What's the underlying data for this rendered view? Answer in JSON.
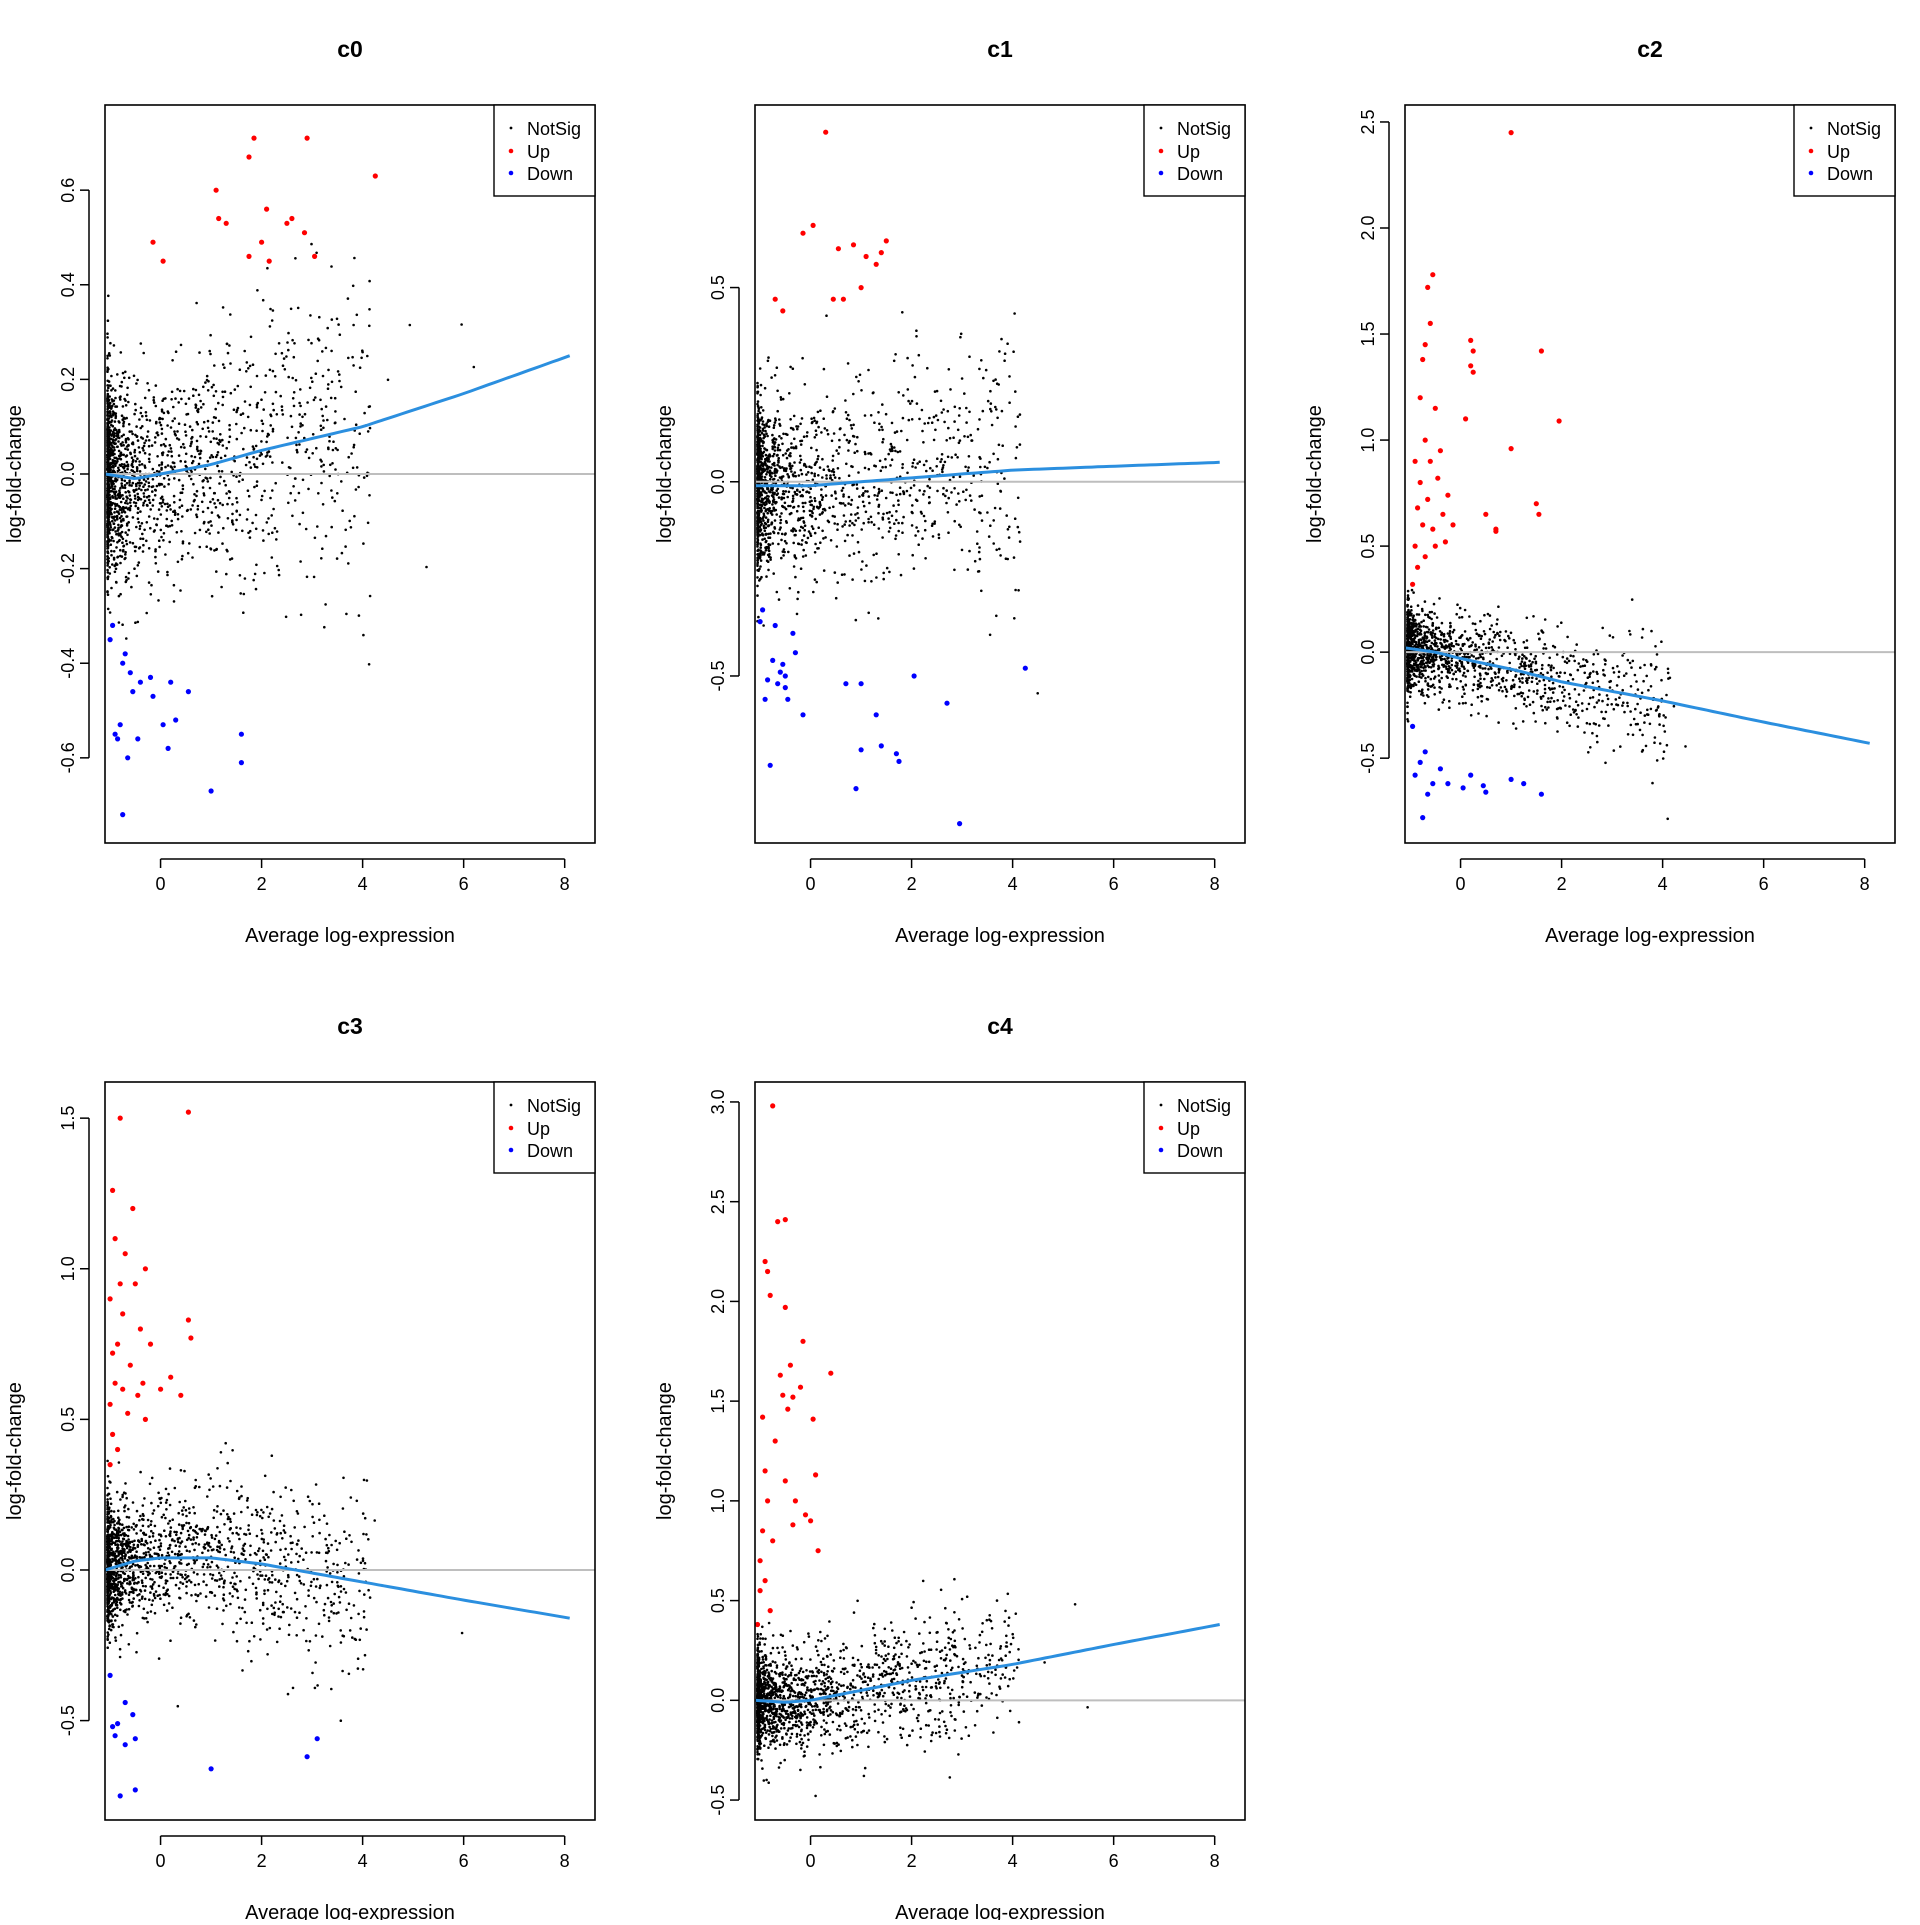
{
  "figure": {
    "xlabel": "Average log-expression",
    "ylabel": "log-fold-change"
  },
  "legend_entries": [
    "NotSig",
    "Up",
    "Down"
  ],
  "colors": {
    "notsig": "#000000",
    "up": "#ff0000",
    "down": "#0000ff",
    "trend": "#2b8fdf",
    "zero_line": "#bebebe"
  },
  "chart_data": [
    {
      "type": "scatter",
      "title": "c0",
      "xlabel": "Average log-expression",
      "ylabel": "log-fold-change",
      "xlim": [
        -1.1,
        8.6
      ],
      "ylim": [
        -0.78,
        0.78
      ],
      "xticks": [
        0,
        2,
        4,
        6,
        8
      ],
      "yticks": [
        -0.6,
        -0.4,
        -0.2,
        0.0,
        0.2,
        0.4,
        0.6
      ],
      "ytick_labels": [
        "-0.6",
        "-0.4",
        "-0.2",
        "0.0",
        "0.2",
        "0.4",
        "0.6"
      ],
      "legend": {
        "position": "top-right",
        "entries": [
          "NotSig",
          "Up",
          "Down"
        ]
      },
      "trend": {
        "x": [
          -1.1,
          -0.5,
          0,
          1,
          2,
          4,
          6,
          8.1
        ],
        "y": [
          0.0,
          -0.01,
          0.0,
          0.02,
          0.05,
          0.1,
          0.17,
          0.25
        ]
      },
      "cloud": {
        "n": 1800,
        "spread": 0.14
      },
      "up": [
        [
          -0.15,
          0.49
        ],
        [
          0.05,
          0.45
        ],
        [
          1.1,
          0.6
        ],
        [
          1.15,
          0.54
        ],
        [
          1.3,
          0.53
        ],
        [
          1.75,
          0.46
        ],
        [
          1.75,
          0.67
        ],
        [
          1.85,
          0.71
        ],
        [
          2.0,
          0.49
        ],
        [
          2.1,
          0.56
        ],
        [
          2.15,
          0.45
        ],
        [
          2.5,
          0.53
        ],
        [
          2.6,
          0.54
        ],
        [
          2.85,
          0.51
        ],
        [
          2.9,
          0.71
        ],
        [
          3.05,
          0.46
        ],
        [
          4.25,
          0.63
        ]
      ],
      "down": [
        [
          -1.0,
          -0.35
        ],
        [
          -0.95,
          -0.32
        ],
        [
          -0.9,
          -0.55
        ],
        [
          -0.85,
          -0.56
        ],
        [
          -0.8,
          -0.53
        ],
        [
          -0.75,
          -0.72
        ],
        [
          -0.75,
          -0.4
        ],
        [
          -0.7,
          -0.38
        ],
        [
          -0.65,
          -0.6
        ],
        [
          -0.6,
          -0.42
        ],
        [
          -0.55,
          -0.46
        ],
        [
          -0.45,
          -0.56
        ],
        [
          -0.4,
          -0.44
        ],
        [
          -0.2,
          -0.43
        ],
        [
          -0.15,
          -0.47
        ],
        [
          0.05,
          -0.53
        ],
        [
          0.15,
          -0.58
        ],
        [
          0.2,
          -0.44
        ],
        [
          0.3,
          -0.52
        ],
        [
          0.55,
          -0.46
        ],
        [
          1.0,
          -0.67
        ],
        [
          1.6,
          -0.55
        ],
        [
          1.6,
          -0.61
        ]
      ]
    },
    {
      "type": "scatter",
      "title": "c1",
      "xlabel": "Average log-expression",
      "ylabel": "log-fold-change",
      "xlim": [
        -1.1,
        8.6
      ],
      "ylim": [
        -0.93,
        0.97
      ],
      "xticks": [
        0,
        2,
        4,
        6,
        8
      ],
      "yticks": [
        -0.5,
        0.0,
        0.5
      ],
      "ytick_labels": [
        "-0.5",
        "0.0",
        "0.5"
      ],
      "legend": {
        "position": "top-right",
        "entries": [
          "NotSig",
          "Up",
          "Down"
        ]
      },
      "trend": {
        "x": [
          -1.1,
          -0.5,
          0,
          1,
          2,
          4,
          6,
          8.1
        ],
        "y": [
          -0.01,
          -0.01,
          -0.01,
          0.0,
          0.01,
          0.03,
          0.04,
          0.05
        ]
      },
      "cloud": {
        "n": 1600,
        "spread": 0.15
      },
      "up": [
        [
          -0.7,
          0.47
        ],
        [
          -0.55,
          0.44
        ],
        [
          -0.15,
          0.64
        ],
        [
          0.05,
          0.66
        ],
        [
          0.3,
          0.9
        ],
        [
          0.45,
          0.47
        ],
        [
          0.55,
          0.6
        ],
        [
          0.65,
          0.47
        ],
        [
          0.85,
          0.61
        ],
        [
          1.0,
          0.5
        ],
        [
          1.1,
          0.58
        ],
        [
          1.3,
          0.56
        ],
        [
          1.4,
          0.59
        ],
        [
          1.5,
          0.62
        ]
      ],
      "down": [
        [
          -1.0,
          -0.36
        ],
        [
          -0.95,
          -0.33
        ],
        [
          -0.9,
          -0.56
        ],
        [
          -0.85,
          -0.51
        ],
        [
          -0.8,
          -0.73
        ],
        [
          -0.75,
          -0.46
        ],
        [
          -0.7,
          -0.37
        ],
        [
          -0.65,
          -0.52
        ],
        [
          -0.6,
          -0.49
        ],
        [
          -0.55,
          -0.47
        ],
        [
          -0.5,
          -0.5
        ],
        [
          -0.5,
          -0.53
        ],
        [
          -0.45,
          -0.56
        ],
        [
          -0.35,
          -0.39
        ],
        [
          -0.3,
          -0.44
        ],
        [
          -0.15,
          -0.6
        ],
        [
          0.7,
          -0.52
        ],
        [
          0.9,
          -0.79
        ],
        [
          1.0,
          -0.69
        ],
        [
          1.0,
          -0.52
        ],
        [
          1.3,
          -0.6
        ],
        [
          1.4,
          -0.68
        ],
        [
          1.7,
          -0.7
        ],
        [
          1.75,
          -0.72
        ],
        [
          2.05,
          -0.5
        ],
        [
          2.7,
          -0.57
        ],
        [
          2.95,
          -0.88
        ],
        [
          4.25,
          -0.48
        ]
      ]
    },
    {
      "type": "scatter",
      "title": "c2",
      "xlabel": "Average log-expression",
      "ylabel": "log-fold-change",
      "xlim": [
        -1.1,
        8.6
      ],
      "ylim": [
        -0.9,
        2.58
      ],
      "xticks": [
        0,
        2,
        4,
        6,
        8
      ],
      "yticks": [
        -0.5,
        0.0,
        0.5,
        1.0,
        1.5,
        2.0,
        2.5
      ],
      "ytick_labels": [
        "-0.5",
        "0.0",
        "0.5",
        "1.0",
        "1.5",
        "2.0",
        "2.5"
      ],
      "legend": {
        "position": "top-right",
        "entries": [
          "NotSig",
          "Up",
          "Down"
        ]
      },
      "trend": {
        "x": [
          -1.1,
          -0.5,
          0,
          1,
          2,
          4,
          6,
          8.1
        ],
        "y": [
          0.02,
          0.0,
          -0.03,
          -0.08,
          -0.14,
          -0.23,
          -0.33,
          -0.43
        ]
      },
      "cloud": {
        "n": 1500,
        "spread": 0.13
      },
      "up": [
        [
          -0.95,
          0.32
        ],
        [
          -0.9,
          0.5
        ],
        [
          -0.9,
          0.9
        ],
        [
          -0.85,
          0.68
        ],
        [
          -0.85,
          0.4
        ],
        [
          -0.8,
          1.2
        ],
        [
          -0.8,
          0.8
        ],
        [
          -0.75,
          1.38
        ],
        [
          -0.75,
          0.6
        ],
        [
          -0.7,
          1.45
        ],
        [
          -0.7,
          1.0
        ],
        [
          -0.7,
          0.45
        ],
        [
          -0.65,
          1.72
        ],
        [
          -0.65,
          0.72
        ],
        [
          -0.6,
          1.55
        ],
        [
          -0.6,
          0.9
        ],
        [
          -0.55,
          1.78
        ],
        [
          -0.55,
          0.58
        ],
        [
          -0.5,
          1.15
        ],
        [
          -0.5,
          0.5
        ],
        [
          -0.45,
          0.82
        ],
        [
          -0.4,
          0.95
        ],
        [
          -0.35,
          0.65
        ],
        [
          -0.3,
          0.52
        ],
        [
          -0.25,
          0.74
        ],
        [
          -0.15,
          0.6
        ],
        [
          0.1,
          1.1
        ],
        [
          0.2,
          1.47
        ],
        [
          0.2,
          1.35
        ],
        [
          0.25,
          1.32
        ],
        [
          0.25,
          1.42
        ],
        [
          0.5,
          0.65
        ],
        [
          0.7,
          0.57
        ],
        [
          0.7,
          0.58
        ],
        [
          1.0,
          2.45
        ],
        [
          1.0,
          0.96
        ],
        [
          1.5,
          0.7
        ],
        [
          1.55,
          0.65
        ],
        [
          1.6,
          1.42
        ],
        [
          1.95,
          1.09
        ]
      ],
      "down": [
        [
          -0.95,
          -0.35
        ],
        [
          -0.9,
          -0.58
        ],
        [
          -0.8,
          -0.52
        ],
        [
          -0.75,
          -0.78
        ],
        [
          -0.7,
          -0.47
        ],
        [
          -0.65,
          -0.67
        ],
        [
          -0.55,
          -0.62
        ],
        [
          -0.4,
          -0.55
        ],
        [
          -0.25,
          -0.62
        ],
        [
          0.05,
          -0.64
        ],
        [
          0.2,
          -0.58
        ],
        [
          0.45,
          -0.63
        ],
        [
          0.5,
          -0.66
        ],
        [
          1.0,
          -0.6
        ],
        [
          1.25,
          -0.62
        ],
        [
          1.6,
          -0.67
        ]
      ]
    },
    {
      "type": "scatter",
      "title": "c3",
      "xlabel": "Average log-expression",
      "ylabel": "log-fold-change",
      "xlim": [
        -1.1,
        8.6
      ],
      "ylim": [
        -0.83,
        1.62
      ],
      "xticks": [
        0,
        2,
        4,
        6,
        8
      ],
      "yticks": [
        -0.5,
        0.0,
        0.5,
        1.0,
        1.5
      ],
      "ytick_labels": [
        "-0.5",
        "0.0",
        "0.5",
        "1.0",
        "1.5"
      ],
      "legend": {
        "position": "top-right",
        "entries": [
          "NotSig",
          "Up",
          "Down"
        ]
      },
      "trend": {
        "x": [
          -1.1,
          -0.5,
          0,
          1,
          2,
          4,
          6,
          8.1
        ],
        "y": [
          0.0,
          0.03,
          0.04,
          0.04,
          0.02,
          -0.04,
          -0.1,
          -0.16
        ]
      },
      "cloud": {
        "n": 1700,
        "spread": 0.14
      },
      "up": [
        [
          -1.0,
          0.35
        ],
        [
          -1.0,
          0.55
        ],
        [
          -1.0,
          0.9
        ],
        [
          -0.95,
          1.26
        ],
        [
          -0.95,
          0.72
        ],
        [
          -0.95,
          0.45
        ],
        [
          -0.9,
          1.1
        ],
        [
          -0.9,
          0.62
        ],
        [
          -0.85,
          0.75
        ],
        [
          -0.85,
          0.4
        ],
        [
          -0.8,
          1.5
        ],
        [
          -0.8,
          0.95
        ],
        [
          -0.75,
          0.85
        ],
        [
          -0.75,
          0.6
        ],
        [
          -0.7,
          1.05
        ],
        [
          -0.65,
          0.52
        ],
        [
          -0.6,
          0.68
        ],
        [
          -0.55,
          1.2
        ],
        [
          -0.5,
          0.95
        ],
        [
          -0.45,
          0.58
        ],
        [
          -0.4,
          0.8
        ],
        [
          -0.35,
          0.62
        ],
        [
          -0.3,
          0.5
        ],
        [
          -0.3,
          1.0
        ],
        [
          -0.2,
          0.75
        ],
        [
          0.0,
          0.6
        ],
        [
          0.2,
          0.64
        ],
        [
          0.4,
          0.58
        ],
        [
          0.55,
          1.52
        ],
        [
          0.55,
          0.83
        ],
        [
          0.6,
          0.77
        ]
      ],
      "down": [
        [
          -1.0,
          -0.35
        ],
        [
          -0.95,
          -0.52
        ],
        [
          -0.9,
          -0.55
        ],
        [
          -0.85,
          -0.51
        ],
        [
          -0.8,
          -0.75
        ],
        [
          -0.7,
          -0.44
        ],
        [
          -0.7,
          -0.58
        ],
        [
          -0.55,
          -0.48
        ],
        [
          -0.5,
          -0.56
        ],
        [
          -0.5,
          -0.73
        ],
        [
          1.0,
          -0.66
        ],
        [
          2.9,
          -0.62
        ],
        [
          3.1,
          -0.56
        ]
      ]
    },
    {
      "type": "scatter",
      "title": "c4",
      "xlabel": "Average log-expression",
      "ylabel": "log-fold-change",
      "xlim": [
        -1.1,
        8.6
      ],
      "ylim": [
        -0.6,
        3.1
      ],
      "xticks": [
        0,
        2,
        4,
        6,
        8
      ],
      "yticks": [
        -0.5,
        0.0,
        0.5,
        1.0,
        1.5,
        2.0,
        2.5,
        3.0
      ],
      "ytick_labels": [
        "-0.5",
        "0.0",
        "0.5",
        "1.0",
        "1.5",
        "2.0",
        "2.5",
        "3.0"
      ],
      "legend": {
        "position": "top-right",
        "entries": [
          "NotSig",
          "Up",
          "Down"
        ]
      },
      "trend": {
        "x": [
          -1.1,
          -0.5,
          0,
          1,
          2,
          4,
          6,
          8.1
        ],
        "y": [
          0.0,
          -0.01,
          0.0,
          0.05,
          0.1,
          0.18,
          0.28,
          0.38
        ]
      },
      "cloud": {
        "n": 1800,
        "spread": 0.16
      },
      "up": [
        [
          -1.05,
          0.38
        ],
        [
          -1.0,
          0.55
        ],
        [
          -1.0,
          0.7
        ],
        [
          -0.95,
          1.42
        ],
        [
          -0.95,
          0.85
        ],
        [
          -0.9,
          2.2
        ],
        [
          -0.9,
          1.15
        ],
        [
          -0.9,
          0.6
        ],
        [
          -0.85,
          2.15
        ],
        [
          -0.85,
          1.0
        ],
        [
          -0.8,
          2.03
        ],
        [
          -0.8,
          0.45
        ],
        [
          -0.75,
          2.98
        ],
        [
          -0.75,
          0.8
        ],
        [
          -0.7,
          1.3
        ],
        [
          -0.65,
          2.4
        ],
        [
          -0.6,
          1.63
        ],
        [
          -0.55,
          1.53
        ],
        [
          -0.5,
          2.41
        ],
        [
          -0.5,
          1.97
        ],
        [
          -0.5,
          1.1
        ],
        [
          -0.45,
          1.46
        ],
        [
          -0.4,
          1.68
        ],
        [
          -0.35,
          1.52
        ],
        [
          -0.35,
          0.88
        ],
        [
          -0.3,
          1.0
        ],
        [
          -0.2,
          1.57
        ],
        [
          -0.15,
          1.8
        ],
        [
          -0.1,
          0.93
        ],
        [
          0.0,
          0.9
        ],
        [
          0.05,
          1.41
        ],
        [
          0.1,
          1.13
        ],
        [
          0.15,
          0.75
        ],
        [
          0.4,
          1.64
        ]
      ],
      "down": []
    }
  ]
}
